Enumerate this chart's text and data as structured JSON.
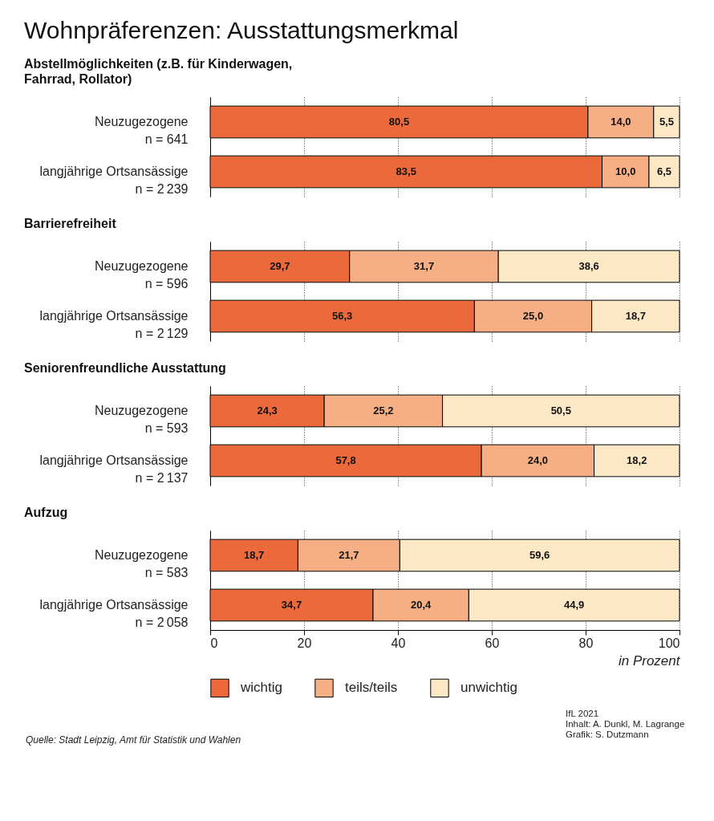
{
  "chart_data": [
    {
      "type": "bar",
      "orientation": "horizontal",
      "stacked": true,
      "title": "Wohnpräferenzen: Ausstattungsmerkmal",
      "subtitle": "Abstellmöglichkeiten (z.B. für Kinderwagen,\nFahrrad, Rollator)",
      "categories": [
        "Neuzugezogene\nn = 641",
        "langjährige Ortsansässige\nn = 2 239"
      ],
      "series": [
        {
          "color": "#eb693a",
          "values": [
            80.5,
            83.5
          ],
          "value_labels": [
            "80,5",
            "83,5"
          ]
        },
        {
          "color": "#f6ae84",
          "values": [
            14.0,
            10.0
          ],
          "value_labels": [
            "14,0",
            "10,0"
          ]
        },
        {
          "color": "#fde8c6",
          "values": [
            5.5,
            6.5
          ],
          "value_labels": [
            "5,5",
            "6,5"
          ]
        }
      ],
      "xlim": [
        0,
        100
      ],
      "xticks": [
        0,
        20,
        40,
        60,
        80,
        100
      ],
      "grid": "x",
      "tick_labels": "y"
    },
    {
      "type": "bar",
      "orientation": "horizontal",
      "stacked": true,
      "title": "Barrierefreiheit",
      "categories": [
        "Neuzugezogene\nn = 596",
        "langjährige Ortsansässige\nn = 2 129"
      ],
      "series": [
        {
          "color": "#eb693a",
          "values": [
            29.7,
            56.3
          ],
          "value_labels": [
            "29,7",
            "56,3"
          ]
        },
        {
          "color": "#f6ae84",
          "values": [
            31.7,
            25.0
          ],
          "value_labels": [
            "31,7",
            "25,0"
          ]
        },
        {
          "color": "#fde8c6",
          "values": [
            38.6,
            18.7
          ],
          "value_labels": [
            "38,6",
            "18,7"
          ]
        }
      ],
      "xlim": [
        0,
        100
      ],
      "xticks": [
        0,
        20,
        40,
        60,
        80,
        100
      ],
      "grid": "x",
      "tick_labels": "y"
    },
    {
      "type": "bar",
      "orientation": "horizontal",
      "stacked": true,
      "title": "Seniorenfreundliche Ausstattung",
      "categories": [
        "Neuzugezogene\nn = 593",
        "langjährige Ortsansässige\nn = 2 137"
      ],
      "series": [
        {
          "color": "#eb693a",
          "values": [
            24.3,
            57.8
          ],
          "value_labels": [
            "24,3",
            "57,8"
          ]
        },
        {
          "color": "#f6ae84",
          "values": [
            25.2,
            24.0
          ],
          "value_labels": [
            "25,2",
            "24,0"
          ]
        },
        {
          "color": "#fde8c6",
          "values": [
            50.5,
            18.2
          ],
          "value_labels": [
            "50,5",
            "18,2"
          ]
        }
      ],
      "xlim": [
        0,
        100
      ],
      "xticks": [
        0,
        20,
        40,
        60,
        80,
        100
      ],
      "grid": "x",
      "tick_labels": "y"
    },
    {
      "type": "bar",
      "orientation": "horizontal",
      "stacked": true,
      "title": "Aufzug",
      "xlabel": "in Prozent",
      "categories": [
        "Neuzugezogene\nn = 583",
        "langjährige Ortsansässige\nn = 2 058"
      ],
      "series": [
        {
          "name": "wichtig",
          "color": "#eb693a",
          "values": [
            18.7,
            34.7
          ],
          "value_labels": [
            "18,7",
            "34,7"
          ]
        },
        {
          "name": "teils/teils",
          "color": "#f6ae84",
          "values": [
            21.7,
            20.4
          ],
          "value_labels": [
            "21,7",
            "20,4"
          ]
        },
        {
          "name": "unwichtig",
          "color": "#fde8c6",
          "values": [
            59.6,
            44.9
          ],
          "value_labels": [
            "59,6",
            "44,9"
          ]
        }
      ],
      "xlim": [
        0,
        100
      ],
      "xticks": [
        0,
        20,
        40,
        60,
        80,
        100
      ],
      "grid": "x",
      "legend": "bottom",
      "annotations": [
        "Quelle: Stadt Leipzig, Amt für Statistik und Wahlen",
        "IfL 2021\nInhalt: A. Dunkl, M. Lagrange\nGrafik: S. Dutzmann"
      ]
    }
  ]
}
